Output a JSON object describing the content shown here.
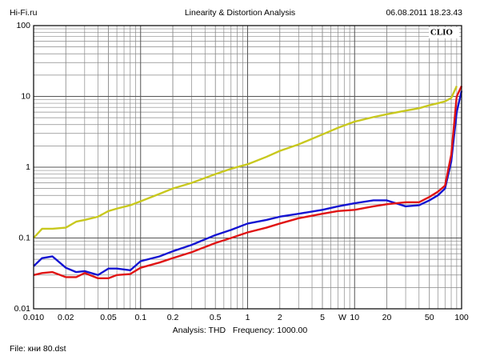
{
  "header": {
    "left": "Hi-Fi.ru",
    "title": "Linearity & Distortion Analysis",
    "timestamp": "06.08.2011 18.23.43"
  },
  "chart_data": {
    "type": "line",
    "logo": "CLIO",
    "x_unit_label": "W",
    "analysis": "Analysis: THD   Frequency: 1000.00",
    "file": "File: кни 80.dst",
    "xlog": true,
    "ylog": true,
    "grid": true,
    "xlim": [
      0.01,
      100
    ],
    "ylim": [
      0.01,
      100
    ],
    "xticks": [
      {
        "value": 0.01,
        "label": "0.010"
      },
      0.02,
      0.05,
      0.1,
      0.2,
      0.5,
      1,
      2,
      5,
      10,
      20,
      50,
      100
    ],
    "yticks": [
      100,
      10,
      1,
      0.1,
      0.01
    ],
    "x": [
      0.01,
      0.012,
      0.015,
      0.02,
      0.025,
      0.03,
      0.04,
      0.05,
      0.06,
      0.08,
      0.1,
      0.15,
      0.2,
      0.3,
      0.5,
      0.7,
      1,
      1.5,
      2,
      3,
      5,
      7,
      10,
      15,
      20,
      30,
      40,
      50,
      60,
      70,
      80,
      90,
      100
    ],
    "series": [
      {
        "color": "#c8c81e",
        "values": [
          0.1,
          0.135,
          0.135,
          0.14,
          0.17,
          0.18,
          0.2,
          0.24,
          0.26,
          0.29,
          0.33,
          0.42,
          0.5,
          0.6,
          0.8,
          0.95,
          1.1,
          1.4,
          1.7,
          2.1,
          2.9,
          3.6,
          4.4,
          5.1,
          5.6,
          6.3,
          6.8,
          7.5,
          8,
          8.5,
          9.5,
          14,
          null
        ]
      },
      {
        "color": "#1414d2",
        "values": [
          0.04,
          0.052,
          0.055,
          0.038,
          0.033,
          0.034,
          0.03,
          0.037,
          0.037,
          0.035,
          0.047,
          0.055,
          0.065,
          0.08,
          0.11,
          0.13,
          0.16,
          0.18,
          0.2,
          0.22,
          0.25,
          0.28,
          0.31,
          0.34,
          0.34,
          0.28,
          0.29,
          0.34,
          0.4,
          0.5,
          1.2,
          6,
          12
        ]
      },
      {
        "color": "#e01414",
        "values": [
          0.03,
          0.032,
          0.033,
          0.028,
          0.028,
          0.032,
          0.027,
          0.027,
          0.03,
          0.031,
          0.038,
          0.045,
          0.052,
          0.063,
          0.085,
          0.1,
          0.12,
          0.14,
          0.16,
          0.19,
          0.22,
          0.24,
          0.25,
          0.28,
          0.3,
          0.32,
          0.32,
          0.38,
          0.45,
          0.55,
          1.5,
          10,
          14
        ]
      }
    ]
  }
}
